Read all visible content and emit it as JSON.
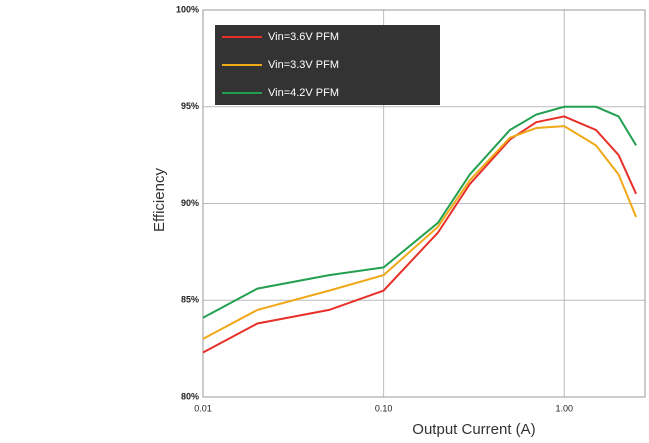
{
  "chart_data": {
    "type": "line",
    "x_label": "Output Current (A)",
    "y_label": "Efficiency",
    "x": [
      0.01,
      0.02,
      0.05,
      0.1,
      0.2,
      0.3,
      0.5,
      0.7,
      1.0,
      1.5,
      2.0,
      2.5
    ],
    "series": [
      {
        "name": "Vin=3.6V PFM",
        "color": "#e8302a",
        "values": [
          82.3,
          83.8,
          84.5,
          85.5,
          88.5,
          91,
          93.3,
          94.2,
          94.5,
          93.8,
          92.5,
          90.5
        ]
      },
      {
        "name": "Vin=3.3V PFM",
        "color": "#f0a818",
        "values": [
          83,
          84.5,
          85.5,
          86.3,
          88.8,
          91.2,
          93.4,
          93.9,
          94,
          93,
          91.5,
          89.3
        ]
      },
      {
        "name": "Vin=4.2V PFM",
        "color": "#22a050",
        "values": [
          84.1,
          85.6,
          86.3,
          86.7,
          89,
          91.5,
          93.8,
          94.6,
          95,
          95,
          94.5,
          93
        ]
      }
    ],
    "xlim": [
      0.01,
      2.8
    ],
    "ylim": [
      80,
      100
    ],
    "x_log": true,
    "xticks": [
      {
        "value": 0.01,
        "label": "0.01"
      },
      {
        "value": 0.1,
        "label": "0.10"
      },
      {
        "value": 1,
        "label": "1.00"
      }
    ],
    "yticks": [
      {
        "value": 80,
        "label": "80%"
      },
      {
        "value": 85,
        "label": "85%"
      },
      {
        "value": 90,
        "label": "90%"
      },
      {
        "value": 95,
        "label": "95%"
      },
      {
        "value": 100,
        "label": "100%"
      }
    ],
    "grid": true
  }
}
